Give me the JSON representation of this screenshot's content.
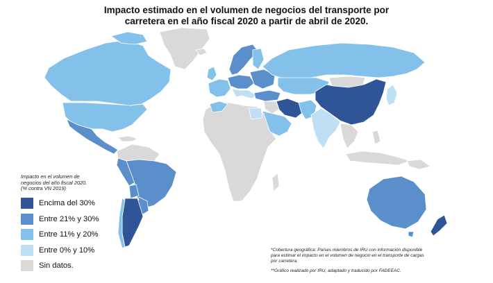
{
  "title": {
    "line1": "Impacto estimado en el volumen de negocios del transporte por",
    "line2": "carretera en el año fiscal 2020 a partir de abril de 2020."
  },
  "colors": {
    "above30": "#2f5597",
    "r21to30": "#5b8fcb",
    "r11to20": "#83c0ea",
    "r0to10": "#bfe0f4",
    "nodata": "#d9d9d9"
  },
  "legend": {
    "title_line1": "Impacto en el volumen de",
    "title_line2": "negocios del año fiscal 2020.",
    "title_line3": "(% contra  VN 2019)",
    "items": [
      {
        "label": "Encima del 30%",
        "color": "#2f5597"
      },
      {
        "label": "Entre 21% y 30%",
        "color": "#5b8fcb"
      },
      {
        "label": "Entre 11% y 20%",
        "color": "#83c0ea"
      },
      {
        "label": "Entre 0% y 10%",
        "color": "#bfe0f4"
      },
      {
        "label": "Sin datos.",
        "color": "#d9d9d9"
      }
    ]
  },
  "notes": {
    "coverage_line1": "*Cobertura geográfica: Países miembros de IRU con información disponible",
    "coverage_line2": "para estimar el impacto en el volumen de negocio en el transporte de cargas",
    "coverage_line3": "por carretera.",
    "credit": "**Gráfico realizado por IRU, adaptado y traducido por FADEEAC."
  }
}
